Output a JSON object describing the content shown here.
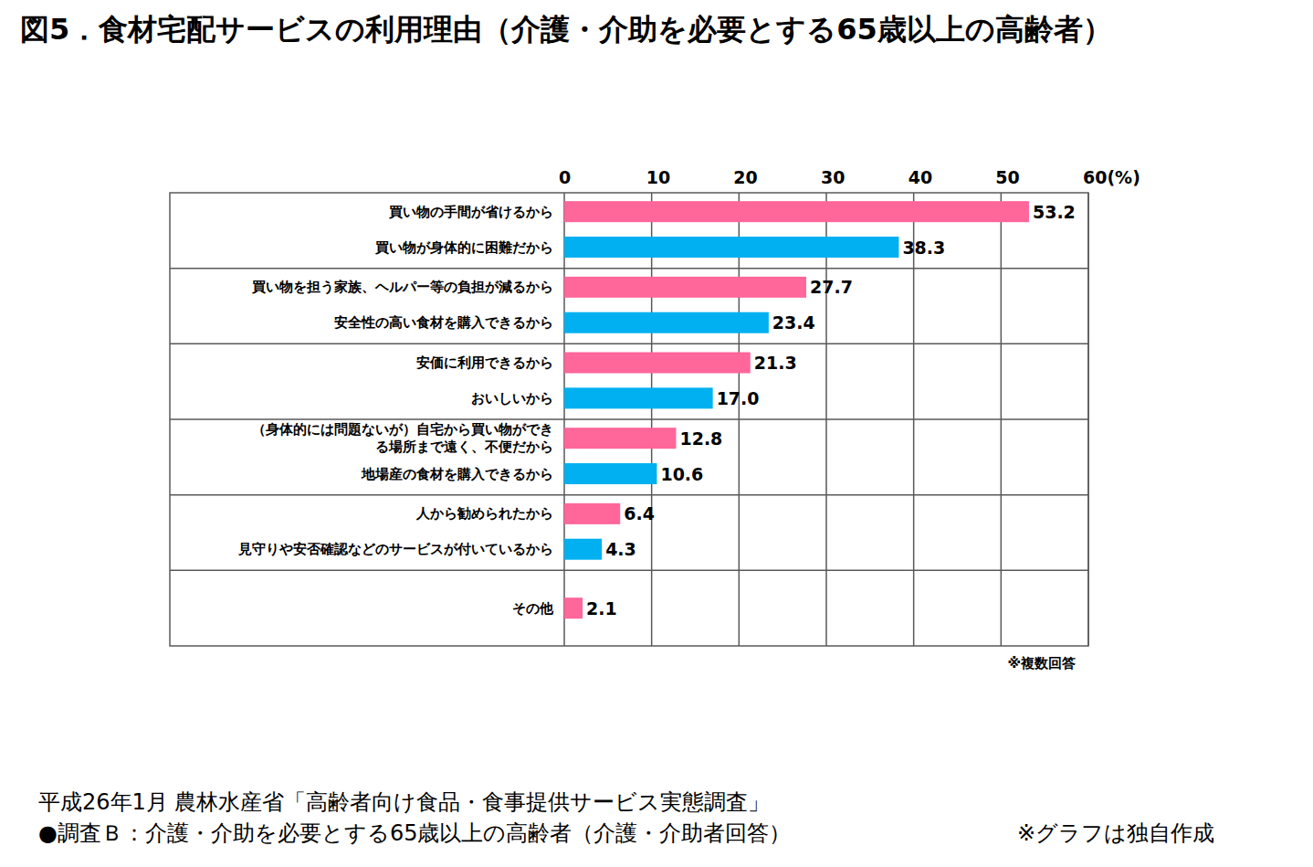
{
  "chart_data": {
    "type": "bar",
    "orientation": "horizontal",
    "title": "図5．食材宅配サービスの利用理由（介護・介助を必要とする65歳以上の高齢者）",
    "categories": [
      "買い物の手間が省けるから",
      "買い物が身体的に困難だから",
      "買い物を担う家族、ヘルパー等の負担が減るから",
      "安全性の高い食材を購入できるから",
      "安価に利用できるから",
      "おいしいから",
      "（身体的には問題ないが）自宅から買い物ができ\nる場所まで遠く、不便だから",
      "地場産の食材を購入できるから",
      "人から勧められたから",
      "見守りや安否確認などのサービスが付いているから",
      "その他"
    ],
    "values": [
      53.2,
      38.3,
      27.7,
      23.4,
      21.3,
      17.0,
      12.8,
      10.6,
      6.4,
      4.3,
      2.1
    ],
    "value_labels": [
      "53.2",
      "38.3",
      "27.7",
      "23.4",
      "21.3",
      "17.0",
      "12.8",
      "10.6",
      "6.4",
      "4.3",
      "2.1"
    ],
    "colors": [
      "#ff6699",
      "#00b0f0",
      "#ff6699",
      "#00b0f0",
      "#ff6699",
      "#00b0f0",
      "#ff6699",
      "#00b0f0",
      "#ff6699",
      "#00b0f0",
      "#ff6699"
    ],
    "xlim": [
      0,
      60
    ],
    "xticks": [
      0,
      10,
      20,
      30,
      40,
      50,
      {
        "value": 60,
        "label": "60(%)"
      }
    ],
    "grid": true,
    "data_labels": true,
    "annotations": [
      "※複数回答",
      "平成26年1月 農林水産省「高齢者向け食品・食事提供サービス実態調査」",
      "●調査Ｂ：介護・介助を必要とする65歳以上の高齢者（介護・介助者回答）",
      "※グラフは独自作成"
    ]
  }
}
